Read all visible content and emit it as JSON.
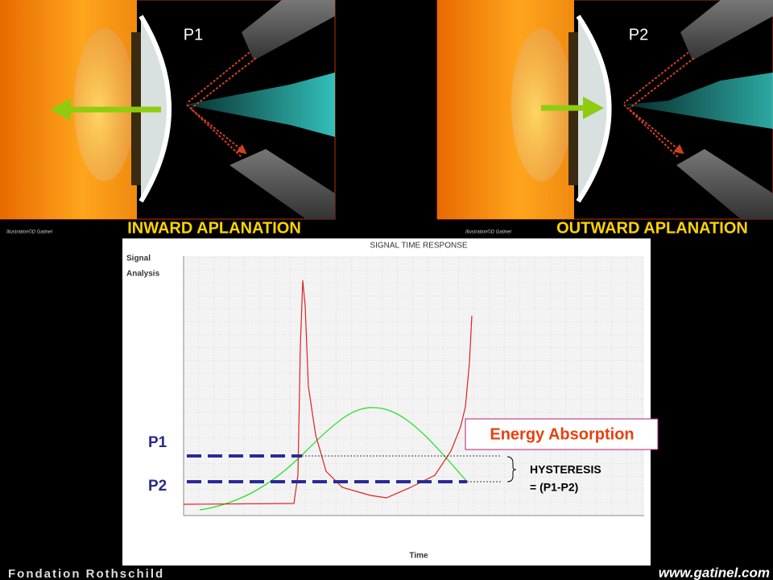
{
  "panels": [
    {
      "label": "P1",
      "caption": "INWARD APLANATION",
      "credit": "Illustration©D Gatinel"
    },
    {
      "label": "P2",
      "caption": "OUTWARD APLANATION",
      "credit": "Illustration©D Gatinel"
    }
  ],
  "chart": {
    "title": "SIGNAL TIME RESPONSE",
    "y_label_lines": [
      "Signal",
      "Analysis"
    ],
    "x_label": "Time",
    "p1_label": "P1",
    "p2_label": "P2",
    "callout": "Energy Absorption",
    "hysteresis_lines": [
      "HYSTERESIS",
      "= (P1-P2)"
    ]
  },
  "footer": {
    "left": "Fondation Rothschild",
    "right": "www.gatinel.com"
  }
}
